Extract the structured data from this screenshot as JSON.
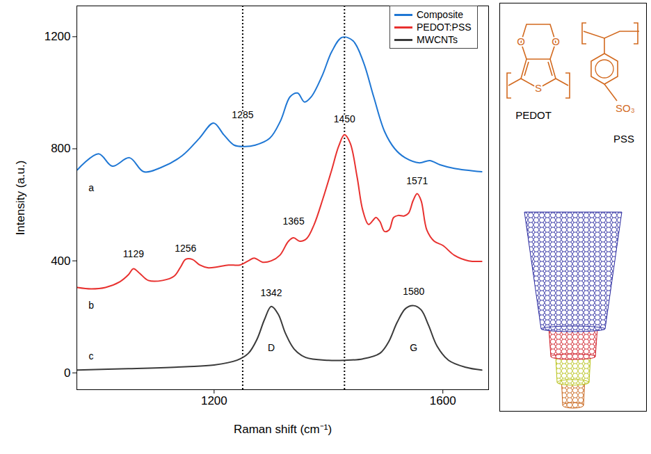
{
  "chart_data": {
    "type": "line",
    "x_label": "Raman shift (cm⁻¹)",
    "y_label": "Intensity (a.u.)",
    "xlim": [
      960,
      1680
    ],
    "xticks": [
      1200,
      1600
    ],
    "ylim": [
      -60,
      1310
    ],
    "yticks": [
      0,
      400,
      800,
      1200
    ],
    "grid": false,
    "legend": "upper right",
    "vlines": [
      1250,
      1428
    ],
    "series": [
      {
        "name": "Composite",
        "color": "#1f77d4",
        "x": [
          961,
          998,
          1022,
          1052,
          1077,
          1107,
          1144,
          1174,
          1199,
          1217,
          1235,
          1254,
          1272,
          1297,
          1316,
          1333,
          1346,
          1358,
          1370,
          1389,
          1406,
          1424,
          1443,
          1461,
          1479,
          1498,
          1516,
          1534,
          1559,
          1577,
          1595,
          1620,
          1668
        ],
        "values": [
          725,
          782,
          738,
          768,
          718,
          733,
          775,
          837,
          892,
          850,
          813,
          808,
          813,
          837,
          899,
          986,
          999,
          967,
          986,
          1061,
          1148,
          1198,
          1185,
          1110,
          986,
          862,
          800,
          768,
          750,
          758,
          743,
          730,
          718
        ]
      },
      {
        "name": "PEDOT:PSS",
        "color": "#e8312f",
        "x": [
          961,
          985,
          1010,
          1035,
          1050,
          1059,
          1070,
          1085,
          1110,
          1130,
          1142,
          1150,
          1162,
          1175,
          1190,
          1205,
          1225,
          1245,
          1260,
          1270,
          1285,
          1300,
          1315,
          1330,
          1339,
          1350,
          1362,
          1375,
          1390,
          1405,
          1418,
          1428,
          1438,
          1450,
          1460,
          1470,
          1478,
          1483,
          1490,
          1498,
          1506,
          1514,
          1522,
          1532,
          1540,
          1548,
          1555,
          1562,
          1572,
          1585,
          1600,
          1620,
          1645,
          1668
        ],
        "values": [
          305,
          300,
          305,
          325,
          350,
          372,
          355,
          330,
          330,
          345,
          380,
          405,
          405,
          385,
          375,
          378,
          385,
          385,
          400,
          410,
          395,
          400,
          420,
          470,
          482,
          470,
          480,
          530,
          620,
          720,
          810,
          850,
          820,
          700,
          580,
          530,
          545,
          555,
          540,
          505,
          510,
          555,
          562,
          560,
          570,
          615,
          640,
          615,
          510,
          470,
          455,
          420,
          400,
          398
        ]
      },
      {
        "name": "MWCNTs",
        "color": "#3a3a3a",
        "x": [
          961,
          1050,
          1150,
          1200,
          1240,
          1260,
          1275,
          1288,
          1300,
          1312,
          1325,
          1340,
          1360,
          1400,
          1428,
          1460,
          1490,
          1505,
          1520,
          1535,
          1549,
          1562,
          1575,
          1590,
          1610,
          1640,
          1668
        ],
        "values": [
          10,
          15,
          22,
          28,
          45,
          70,
          120,
          190,
          237,
          210,
          140,
          85,
          55,
          45,
          45,
          50,
          70,
          110,
          180,
          230,
          240,
          225,
          170,
          95,
          45,
          20,
          10
        ]
      }
    ],
    "annotations": [
      {
        "text": "1285",
        "x": 1250,
        "y": 921
      },
      {
        "text": "1450",
        "x": 1428,
        "y": 905
      },
      {
        "text": "1129",
        "x": 1059,
        "y": 425
      },
      {
        "text": "1256",
        "x": 1150,
        "y": 445
      },
      {
        "text": "1365",
        "x": 1339,
        "y": 540
      },
      {
        "text": "1571",
        "x": 1555,
        "y": 685
      },
      {
        "text": "1342",
        "x": 1300,
        "y": 285
      },
      {
        "text": "1580",
        "x": 1549,
        "y": 290
      },
      {
        "text": "D",
        "x": 1300,
        "y": 90
      },
      {
        "text": "G",
        "x": 1549,
        "y": 90
      },
      {
        "text": "a",
        "x": 985,
        "y": 660
      },
      {
        "text": "b",
        "x": 985,
        "y": 240
      },
      {
        "text": "c",
        "x": 985,
        "y": 60
      }
    ]
  },
  "side_panel": {
    "pedot_label": "PEDOT",
    "pss_label": "PSS",
    "sulfonate": "SO₃",
    "oxygen": "O",
    "sulfur": "S"
  }
}
